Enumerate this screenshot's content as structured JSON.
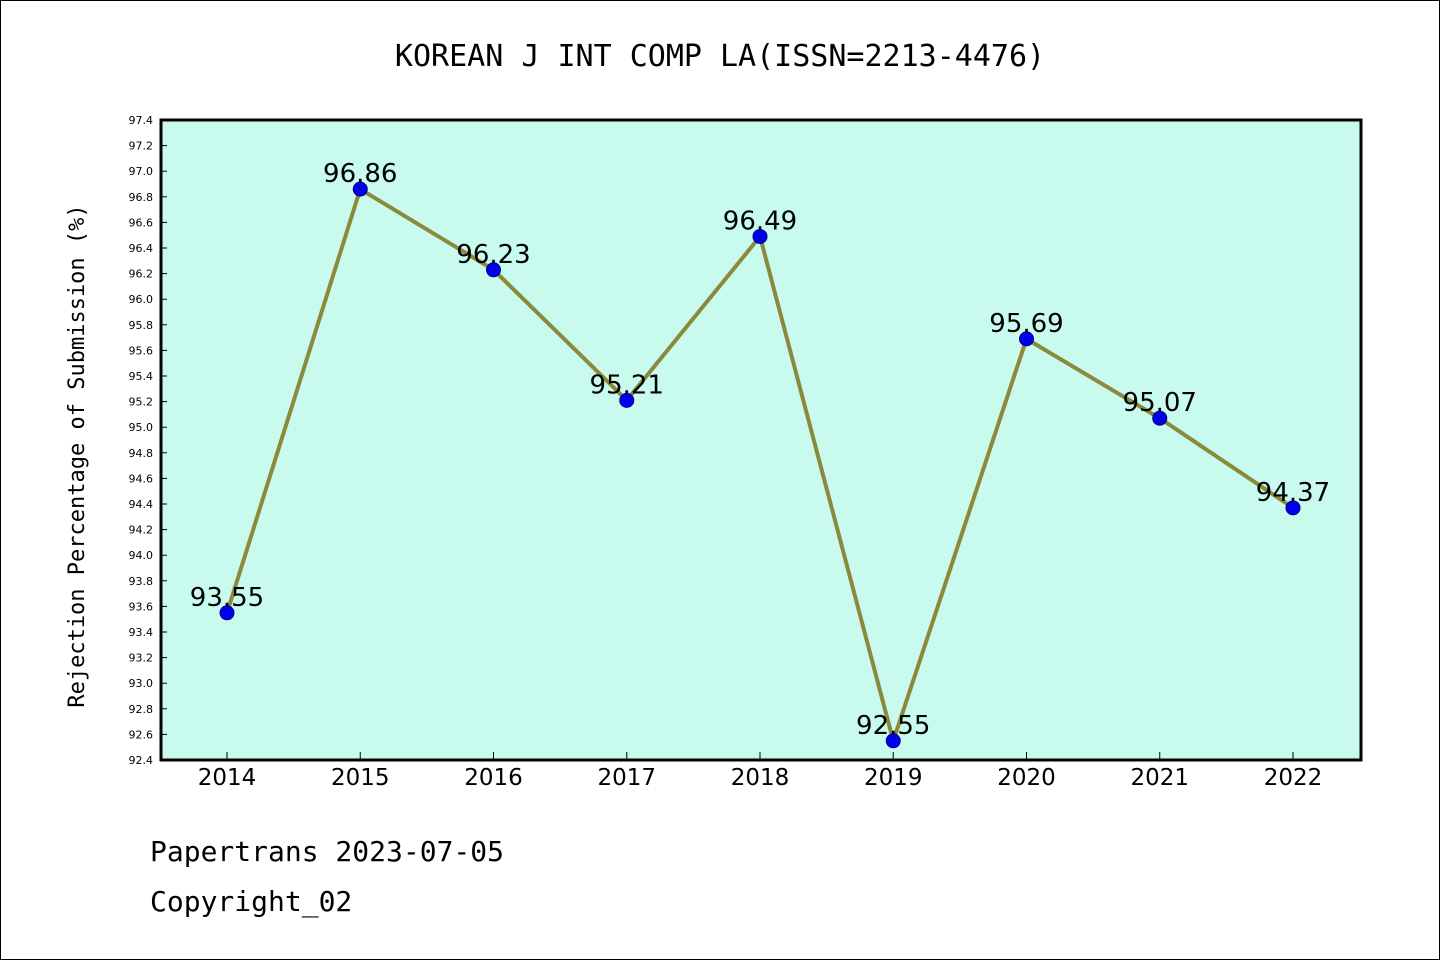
{
  "chart_data": {
    "type": "line",
    "title": "KOREAN J INT COMP LA(ISSN=2213-4476)",
    "xlabel": "",
    "ylabel": "Rejection Percentage of Submission (%)",
    "categories": [
      "2014",
      "2015",
      "2016",
      "2017",
      "2018",
      "2019",
      "2020",
      "2021",
      "2022"
    ],
    "values": [
      93.55,
      96.86,
      96.23,
      95.21,
      96.49,
      92.55,
      95.69,
      95.07,
      94.37
    ],
    "data_labels": [
      "93.55",
      "96.86",
      "96.23",
      "95.21",
      "96.49",
      "92.55",
      "95.69",
      "95.07",
      "94.37"
    ],
    "ylim": [
      92.4,
      97.4
    ],
    "yticks": [
      "92.4",
      "92.6",
      "92.8",
      "93.0",
      "93.2",
      "93.4",
      "93.6",
      "93.8",
      "94.0",
      "94.2",
      "94.4",
      "94.6",
      "94.8",
      "95.0",
      "95.2",
      "95.4",
      "95.6",
      "95.8",
      "96.0",
      "96.2",
      "96.4",
      "96.6",
      "96.8",
      "97.0",
      "97.2",
      "97.4"
    ],
    "grid": false,
    "colors": {
      "background": "#c8fbee",
      "line": "#8b8a3c",
      "marker": "#0000ee"
    }
  },
  "footer": {
    "line1": "Papertrans 2023-07-05",
    "line2": "Copyright_02"
  }
}
